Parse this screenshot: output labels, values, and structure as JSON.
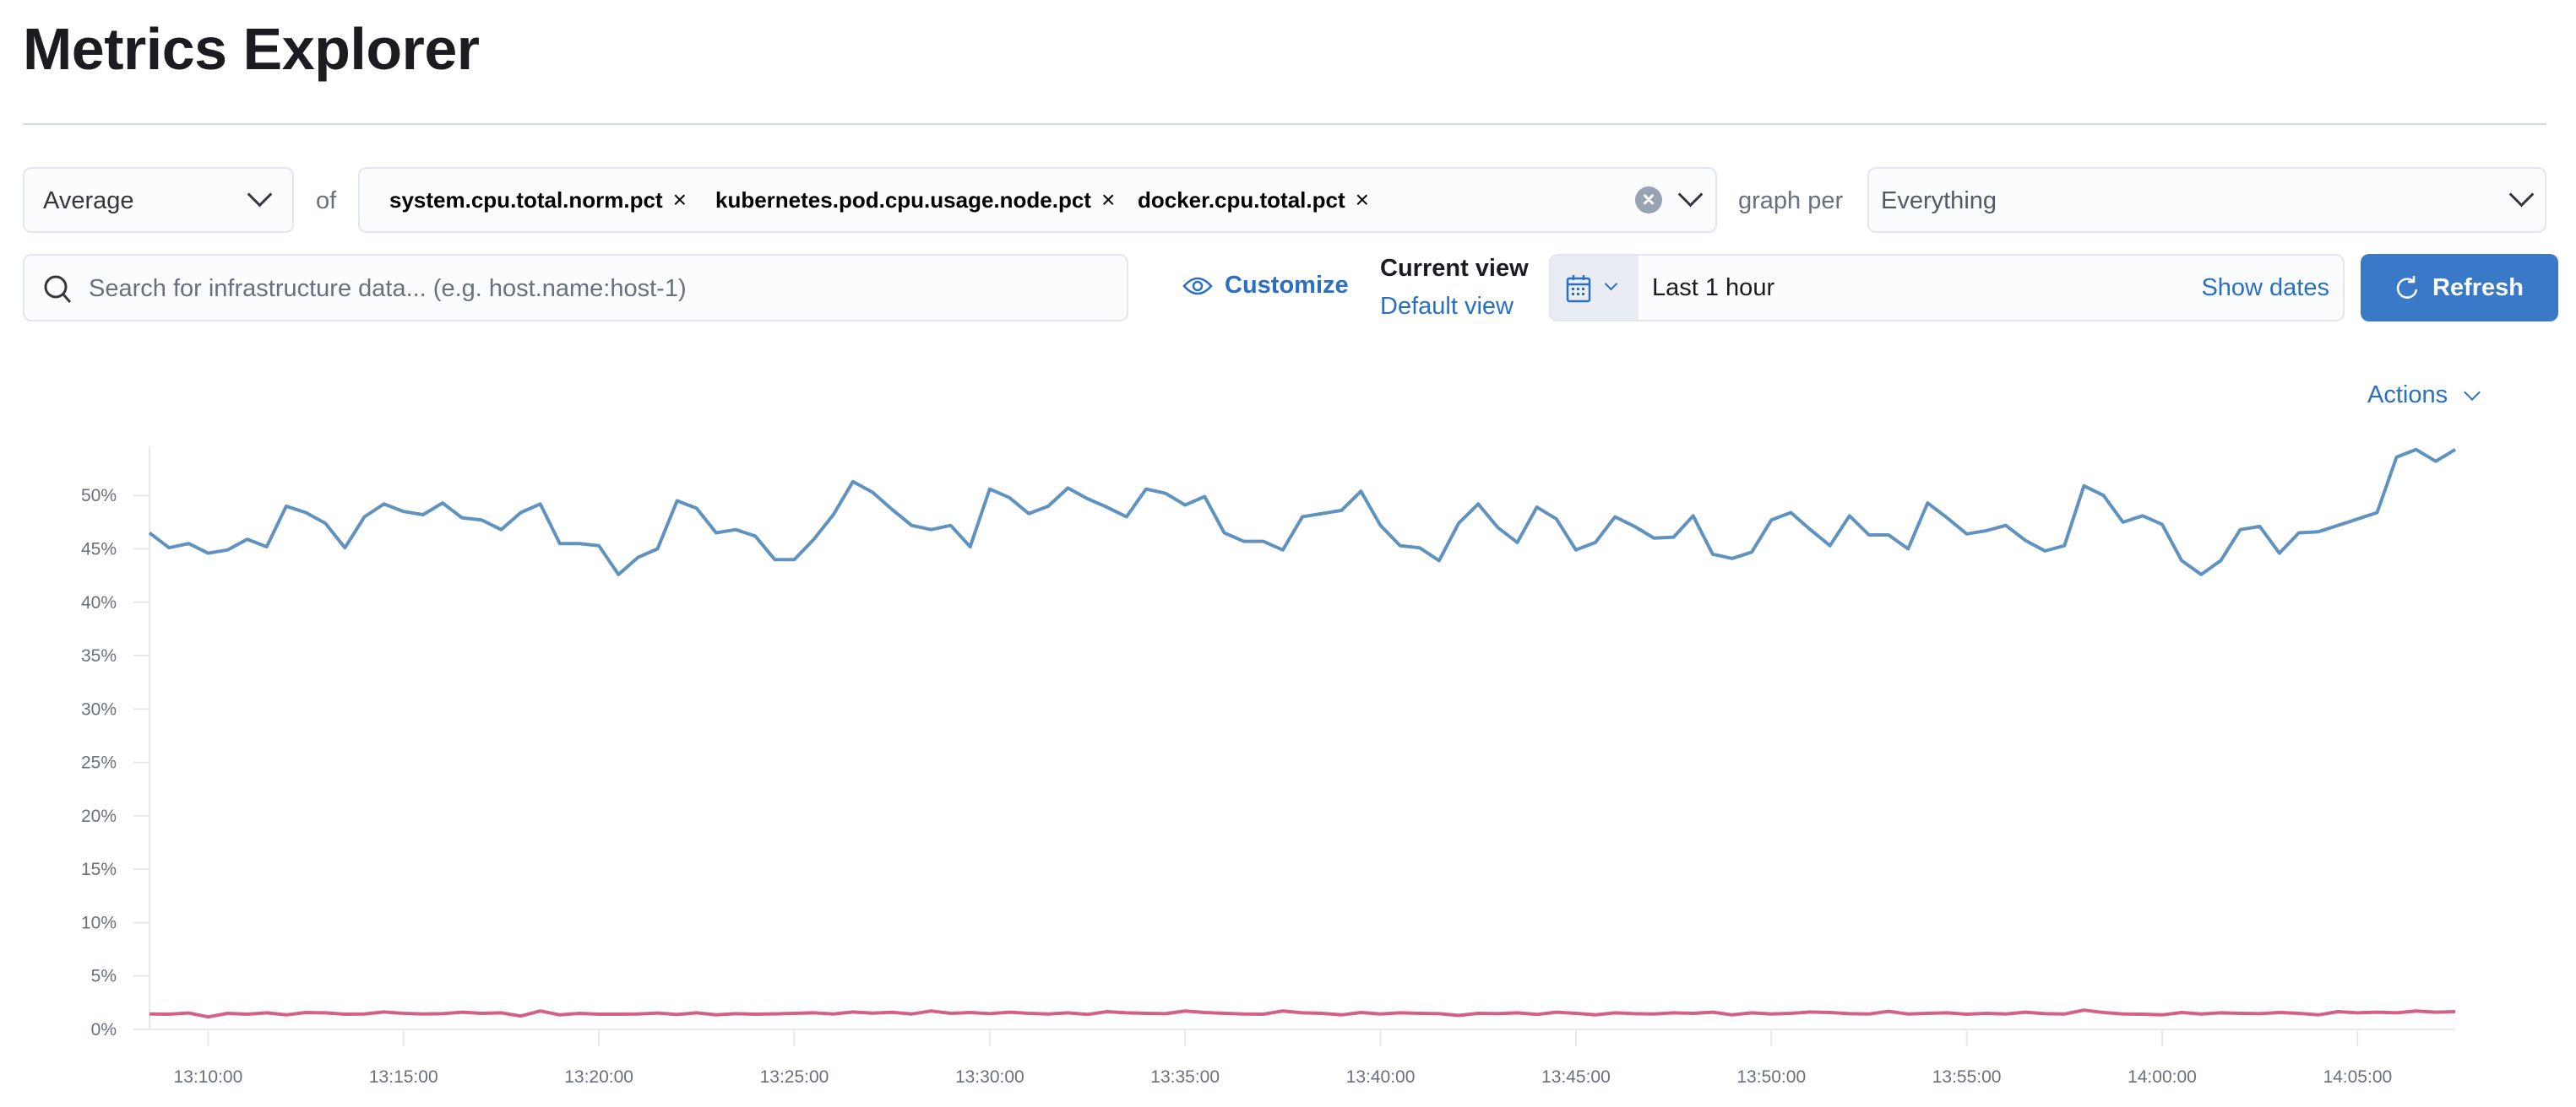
{
  "page": {
    "title": "Metrics Explorer"
  },
  "toolbar": {
    "aggregation": "Average",
    "of_label": "of",
    "metrics": [
      {
        "label": "system.cpu.total.norm.pct",
        "color": "#6a92bd"
      },
      {
        "label": "kubernetes.pod.cpu.usage.node.pct",
        "color": "#c4677f"
      },
      {
        "label": "docker.cpu.total.pct",
        "color": "#6db39a"
      }
    ],
    "remove_glyph": "×",
    "clear_glyph": "×",
    "graph_per_label": "graph per",
    "graph_per_value": "Everything",
    "search_placeholder": "Search for infrastructure data... (e.g. host.name:host-1)",
    "customize_label": "Customize",
    "current_view_label": "Current view",
    "default_view_label": "Default view",
    "time_range": "Last 1 hour",
    "show_dates_label": "Show dates",
    "refresh_label": "Refresh",
    "actions_label": "Actions"
  },
  "colors": {
    "accent": "#2a6fc1",
    "button": "#3a79c8"
  },
  "chart_data": {
    "type": "line",
    "x_start": "13:08:30",
    "x_interval_seconds": 30,
    "x_ticks": [
      "13:10:00",
      "13:15:00",
      "13:20:00",
      "13:25:00",
      "13:30:00",
      "13:35:00",
      "13:40:00",
      "13:45:00",
      "13:50:00",
      "13:55:00",
      "14:00:00",
      "14:05:00"
    ],
    "y_ticks": [
      "0%",
      "5%",
      "10%",
      "15%",
      "20%",
      "25%",
      "30%",
      "35%",
      "40%",
      "45%",
      "50%"
    ],
    "ylim": [
      0,
      54.6
    ],
    "y_unit": "%",
    "grid": false,
    "series": [
      {
        "name": "system.cpu.total.norm.pct",
        "color": "#6092c0",
        "values": [
          46.5,
          45.1,
          45.5,
          44.6,
          44.9,
          45.9,
          45.2,
          49.0,
          48.4,
          47.4,
          45.1,
          48.0,
          49.2,
          48.5,
          48.2,
          49.3,
          47.9,
          47.7,
          46.8,
          48.4,
          49.2,
          45.5,
          45.5,
          45.3,
          42.6,
          44.2,
          45.0,
          49.5,
          48.8,
          46.5,
          46.8,
          46.2,
          44.0,
          44.0,
          45.9,
          48.2,
          51.3,
          50.3,
          48.7,
          47.2,
          46.8,
          47.2,
          45.2,
          50.6,
          49.8,
          48.3,
          49.0,
          50.7,
          49.7,
          48.9,
          48.0,
          50.6,
          50.2,
          49.1,
          49.9,
          46.5,
          45.7,
          45.7,
          44.9,
          48.0,
          48.3,
          48.6,
          50.4,
          47.2,
          45.3,
          45.1,
          43.9,
          47.4,
          49.2,
          47.0,
          45.6,
          48.9,
          47.8,
          44.9,
          45.6,
          48.0,
          47.1,
          46.0,
          46.1,
          48.1,
          44.5,
          44.1,
          44.7,
          47.7,
          48.4,
          46.8,
          45.3,
          48.1,
          46.3,
          46.3,
          45.0,
          49.3,
          47.9,
          46.4,
          46.7,
          47.2,
          45.8,
          44.8,
          45.3,
          50.9,
          50.0,
          47.5,
          48.1,
          47.3,
          43.9,
          42.6,
          43.9,
          46.8,
          47.1,
          44.6,
          46.5,
          46.6,
          47.2,
          47.8,
          48.4,
          53.6,
          54.3,
          53.2,
          54.3
        ]
      },
      {
        "name": "kubernetes.pod.cpu.usage.node.pct",
        "color": "#d36086",
        "values": [
          1.44,
          1.42,
          1.53,
          1.17,
          1.5,
          1.42,
          1.55,
          1.36,
          1.58,
          1.55,
          1.42,
          1.44,
          1.63,
          1.5,
          1.44,
          1.47,
          1.61,
          1.5,
          1.55,
          1.25,
          1.72,
          1.36,
          1.5,
          1.42,
          1.42,
          1.44,
          1.53,
          1.39,
          1.55,
          1.36,
          1.47,
          1.42,
          1.45,
          1.5,
          1.55,
          1.44,
          1.63,
          1.52,
          1.6,
          1.44,
          1.72,
          1.5,
          1.58,
          1.47,
          1.61,
          1.5,
          1.44,
          1.55,
          1.4,
          1.66,
          1.55,
          1.5,
          1.47,
          1.72,
          1.58,
          1.5,
          1.44,
          1.42,
          1.72,
          1.55,
          1.5,
          1.36,
          1.58,
          1.44,
          1.55,
          1.5,
          1.47,
          1.3,
          1.5,
          1.47,
          1.55,
          1.4,
          1.61,
          1.5,
          1.36,
          1.55,
          1.47,
          1.44,
          1.55,
          1.5,
          1.61,
          1.36,
          1.55,
          1.44,
          1.5,
          1.63,
          1.58,
          1.47,
          1.44,
          1.69,
          1.44,
          1.5,
          1.55,
          1.42,
          1.5,
          1.44,
          1.61,
          1.47,
          1.44,
          1.8,
          1.58,
          1.44,
          1.42,
          1.36,
          1.58,
          1.44,
          1.55,
          1.5,
          1.47,
          1.58,
          1.5,
          1.36,
          1.66,
          1.55,
          1.61,
          1.55,
          1.72,
          1.61,
          1.66
        ]
      },
      {
        "name": "docker.cpu.total.pct",
        "color": "#54b399",
        "values": []
      }
    ]
  }
}
